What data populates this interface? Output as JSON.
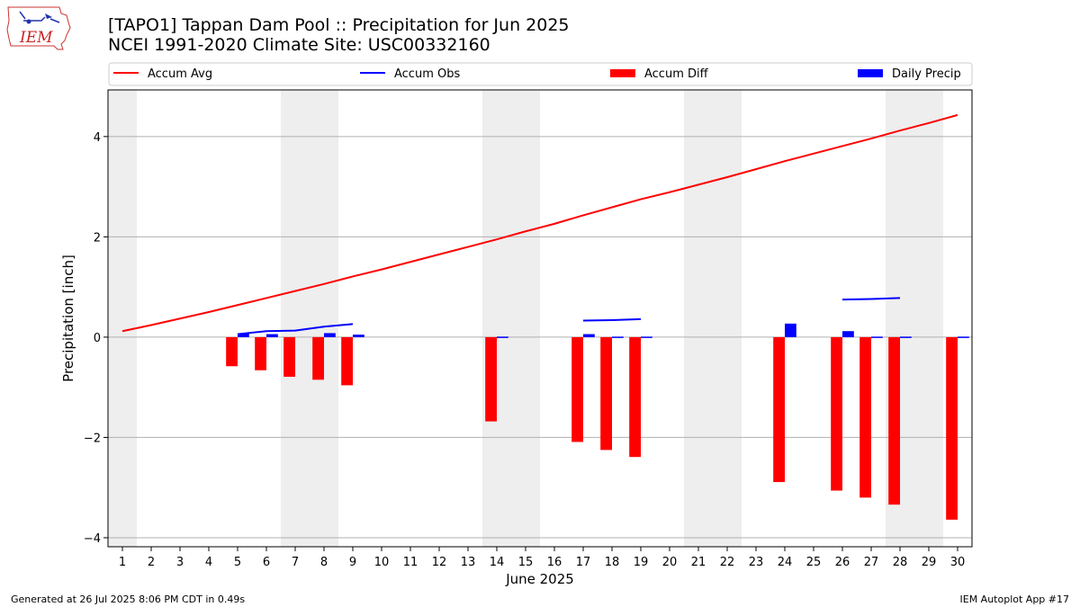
{
  "header": {
    "title_line1": "[TAPO1] Tappan Dam Pool :: Precipitation for Jun 2025",
    "title_line2": "NCEI 1991-2020 Climate Site: USC00332160",
    "logo_text": "IEM"
  },
  "footer": {
    "generated": "Generated at 26 Jul 2025 8:06 PM CDT in 0.49s",
    "app": "IEM Autoplot App #17"
  },
  "chart_data": {
    "type": "bar",
    "xlabel": "June 2025",
    "ylabel": "Precipitation [inch]",
    "xlim": [
      0.5,
      30.5
    ],
    "ylim": [
      -4.18,
      4.93
    ],
    "yticks": [
      -4,
      -2,
      0,
      2,
      4
    ],
    "ytick_labels": [
      "−4",
      "−2",
      "0",
      "2",
      "4"
    ],
    "x_ticks": [
      "1",
      "2",
      "3",
      "4",
      "5",
      "6",
      "7",
      "8",
      "9",
      "10",
      "11",
      "12",
      "13",
      "14",
      "15",
      "16",
      "17",
      "18",
      "19",
      "20",
      "21",
      "22",
      "23",
      "24",
      "25",
      "26",
      "27",
      "28",
      "29",
      "30"
    ],
    "grid": "horizontal",
    "legend_position": "top",
    "weekend_bands": [
      [
        0.5,
        1.5
      ],
      [
        6.5,
        8.5
      ],
      [
        13.5,
        15.5
      ],
      [
        20.5,
        22.5
      ],
      [
        27.5,
        29.5
      ]
    ],
    "colors": {
      "avg": "#ff0000",
      "obs": "#0000ff",
      "diff": "#ff0000",
      "daily": "#0000ff",
      "band": "#eeeeee"
    },
    "legend": [
      "Accum Avg",
      "Accum Obs",
      "Accum Diff",
      "Daily Precip"
    ],
    "series": [
      {
        "name": "Accum Avg",
        "kind": "line",
        "x": [
          1,
          2,
          3,
          4,
          5,
          6,
          7,
          8,
          9,
          10,
          11,
          12,
          13,
          14,
          15,
          16,
          17,
          18,
          19,
          20,
          21,
          22,
          23,
          24,
          25,
          26,
          27,
          28,
          29,
          30
        ],
        "values": [
          0.12,
          0.24,
          0.37,
          0.5,
          0.64,
          0.78,
          0.92,
          1.06,
          1.21,
          1.35,
          1.5,
          1.65,
          1.8,
          1.95,
          2.11,
          2.26,
          2.43,
          2.59,
          2.75,
          2.89,
          3.04,
          3.19,
          3.35,
          3.51,
          3.66,
          3.81,
          3.96,
          4.12,
          4.27,
          4.43
        ]
      },
      {
        "name": "Accum Obs",
        "kind": "line",
        "segments": [
          {
            "x": [
              5,
              6,
              7,
              8,
              9
            ],
            "values": [
              0.06,
              0.12,
              0.13,
              0.21,
              0.26
            ]
          },
          {
            "x": [
              17,
              18,
              19
            ],
            "values": [
              0.33,
              0.34,
              0.36
            ]
          },
          {
            "x": [
              26,
              27,
              28
            ],
            "values": [
              0.75,
              0.76,
              0.78
            ]
          }
        ]
      },
      {
        "name": "Accum Diff",
        "kind": "bar",
        "x": [
          5,
          6,
          7,
          8,
          9,
          14,
          17,
          18,
          19,
          24,
          26,
          27,
          28,
          30
        ],
        "values": [
          -0.58,
          -0.66,
          -0.79,
          -0.85,
          -0.96,
          -1.68,
          -2.09,
          -2.25,
          -2.39,
          -2.89,
          -3.06,
          -3.2,
          -3.34,
          -3.64
        ]
      },
      {
        "name": "Daily Precip",
        "kind": "bar",
        "x": [
          5,
          6,
          8,
          9,
          14,
          17,
          18,
          19,
          24,
          26,
          27,
          28,
          30
        ],
        "values": [
          0.07,
          0.06,
          0.08,
          0.05,
          0.01,
          0.06,
          0.01,
          0.01,
          0.27,
          0.12,
          0.01,
          0.01,
          0.01
        ]
      }
    ]
  }
}
